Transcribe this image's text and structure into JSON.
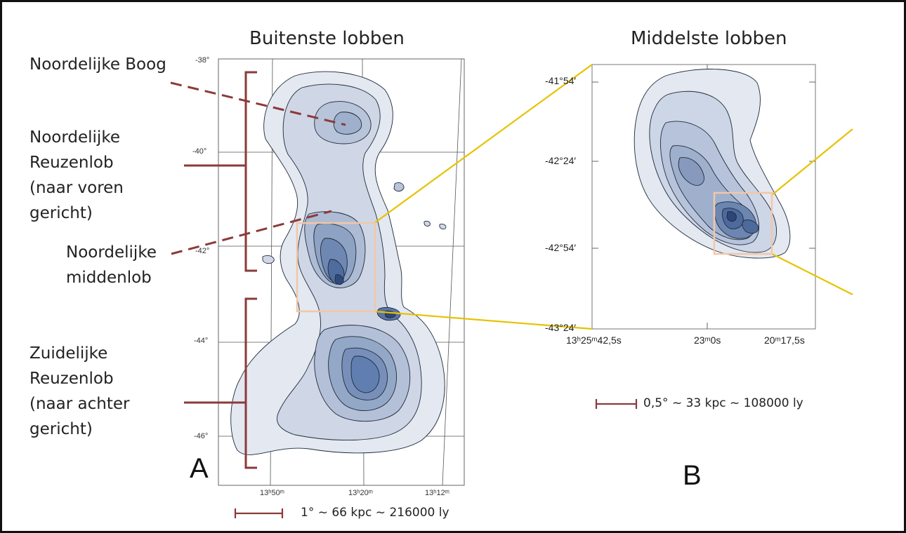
{
  "panel_a": {
    "title": "Buitenste lobben",
    "letter": "A",
    "lat_ticks": [
      "-38°",
      "-40°",
      "-42°",
      "-44°",
      "-46°"
    ],
    "ra_ticks": [
      "13ʰ50ᵐ",
      "13ʰ20ᵐ",
      "13ʰ12ᵐ"
    ],
    "scale_label": "1° ~ 66 kpc ~ 216000 ly"
  },
  "panel_b": {
    "title": "Middelste lobben",
    "letter": "B",
    "dec_ticks": [
      "-41°54′",
      "-42°24′",
      "-42°54′",
      "-43°24′"
    ],
    "ra_ticks": [
      "13ʰ25ᵐ42,5s",
      "23ᵐ0s",
      "20ᵐ17,5s"
    ],
    "scale_label": "0,5° ~ 33 kpc ~ 108000 ly"
  },
  "labels": {
    "northern_arc": "Noordelijke Boog",
    "northern_giant_lobe": [
      "Noordelijke",
      "Reuzenlob",
      "(naar voren",
      "gericht)"
    ],
    "northern_middle_lobe": [
      "Noordelijke",
      "middenlob"
    ],
    "southern_giant_lobe": [
      "Zuidelijke",
      "Reuzenlob",
      "(naar achter",
      "gericht)"
    ]
  },
  "colors": {
    "bracket": "#8b3a3a",
    "zoom_lines": "#e6c200",
    "zoom_box": "#f2c7a8",
    "contour_fill_light": "#e4e9f2",
    "contour_fill_dark": "#3e5f94"
  }
}
